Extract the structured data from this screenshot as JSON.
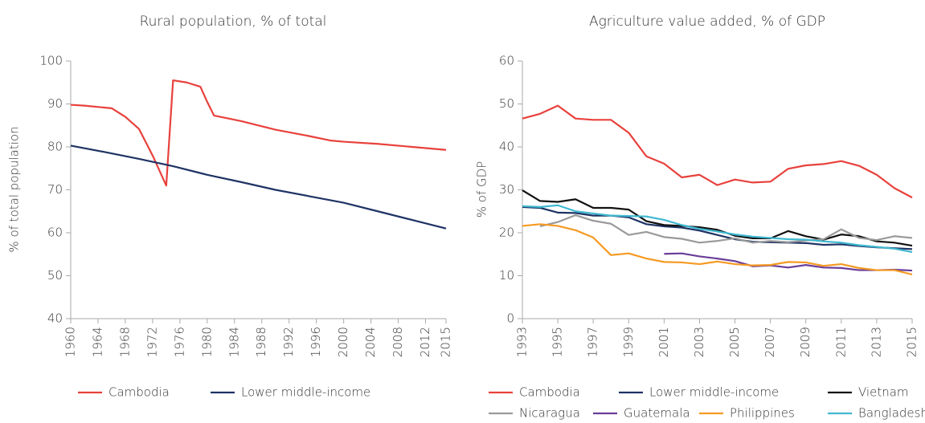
{
  "chart_data": [
    {
      "type": "line",
      "title": "Rural population, % of total",
      "ylabel": "% of total population",
      "xlim": [
        1960,
        2015
      ],
      "xticks": [
        1960,
        1964,
        1968,
        1972,
        1976,
        1980,
        1984,
        1988,
        1992,
        1996,
        2000,
        2004,
        2008,
        2012,
        2015
      ],
      "ylim": [
        40,
        100
      ],
      "yticks": [
        40,
        50,
        60,
        70,
        80,
        90,
        100
      ],
      "series": [
        {
          "name": "Cambodia",
          "color": "#e8413c",
          "x": [
            1960,
            1962,
            1966,
            1968,
            1970,
            1972,
            1974,
            1975,
            1977,
            1979,
            1980,
            1981,
            1985,
            1990,
            1995,
            1998,
            2000,
            2005,
            2010,
            2015
          ],
          "values": [
            89.8,
            89.6,
            89,
            87,
            84.2,
            78,
            71,
            95.5,
            95,
            94,
            90.5,
            87.3,
            86,
            84,
            82.5,
            81.5,
            81.2,
            80.7,
            80,
            79.3
          ]
        },
        {
          "name": "Lower middle-income",
          "color": "#1f3364",
          "x": [
            1960,
            1965,
            1970,
            1975,
            1980,
            1985,
            1990,
            1995,
            2000,
            2005,
            2010,
            2015
          ],
          "values": [
            80.3,
            78.8,
            77.2,
            75.5,
            73.5,
            71.8,
            70,
            68.5,
            67,
            65,
            63,
            61
          ]
        }
      ]
    },
    {
      "type": "line",
      "title": "Agriculture value added, % of GDP",
      "ylabel": "% of GDP",
      "x": [
        1993,
        1994,
        1995,
        1996,
        1997,
        1998,
        1999,
        2000,
        2001,
        2002,
        2003,
        2004,
        2005,
        2006,
        2007,
        2008,
        2009,
        2010,
        2011,
        2012,
        2013,
        2014,
        2015
      ],
      "xlim": [
        1993,
        2015
      ],
      "xticks": [
        1993,
        1995,
        1997,
        1999,
        2001,
        2003,
        2005,
        2007,
        2009,
        2011,
        2013,
        2015
      ],
      "ylim": [
        0,
        60
      ],
      "yticks": [
        0,
        10,
        20,
        30,
        40,
        50,
        60
      ],
      "series": [
        {
          "name": "Cambodia",
          "color": "#e8413c",
          "values": [
            46.6,
            47.7,
            49.6,
            46.6,
            46.3,
            46.3,
            43.3,
            37.8,
            36.1,
            32.9,
            33.5,
            31.1,
            32.4,
            31.7,
            31.9,
            34.9,
            35.7,
            36.0,
            36.7,
            35.6,
            33.5,
            30.4,
            28.2
          ]
        },
        {
          "name": "Lower middle-income",
          "color": "#1f3364",
          "values": [
            26.0,
            25.8,
            24.7,
            24.6,
            24.0,
            24.0,
            23.6,
            22.0,
            21.5,
            21.2,
            20.5,
            19.5,
            18.5,
            17.9,
            17.8,
            17.7,
            17.6,
            17.2,
            17.3,
            16.9,
            16.6,
            16.4,
            16.2
          ]
        },
        {
          "name": "Vietnam",
          "color": "#111111",
          "values": [
            29.9,
            27.4,
            27.2,
            27.8,
            25.8,
            25.8,
            25.4,
            22.7,
            21.8,
            21.6,
            21.3,
            20.7,
            19.3,
            18.7,
            18.7,
            20.4,
            19.2,
            18.4,
            19.6,
            19.2,
            18.0,
            17.7,
            17.0
          ]
        },
        {
          "name": "Nicaragua",
          "color": "#9a9a9a",
          "values": [
            null,
            21.5,
            22.5,
            24.1,
            22.8,
            22.1,
            19.5,
            20.2,
            19.0,
            18.6,
            17.7,
            18.1,
            18.7,
            17.7,
            18.1,
            17.8,
            18.2,
            18.5,
            20.8,
            18.8,
            18.3,
            19.2,
            18.8
          ]
        },
        {
          "name": "Guatemala",
          "color": "#6a3d9a",
          "values": [
            null,
            null,
            null,
            null,
            null,
            null,
            null,
            null,
            15.1,
            15.2,
            14.5,
            14.0,
            13.4,
            12.2,
            12.4,
            11.9,
            12.5,
            11.9,
            11.8,
            11.3,
            11.3,
            11.4,
            11.2
          ]
        },
        {
          "name": "Philippines",
          "color": "#f59a23",
          "values": [
            21.6,
            22.0,
            21.6,
            20.6,
            18.9,
            14.8,
            15.2,
            14.0,
            13.2,
            13.1,
            12.7,
            13.3,
            12.7,
            12.4,
            12.5,
            13.2,
            13.1,
            12.3,
            12.7,
            11.8,
            11.3,
            11.3,
            10.3
          ]
        },
        {
          "name": "Bangladesh",
          "color": "#3fb8d0",
          "values": [
            26.2,
            26.0,
            26.4,
            25.0,
            24.5,
            24.0,
            23.9,
            23.8,
            23.0,
            21.8,
            20.9,
            20.3,
            19.6,
            19.1,
            18.8,
            18.5,
            18.4,
            18.0,
            17.7,
            17.1,
            16.7,
            16.3,
            15.5
          ]
        }
      ]
    }
  ]
}
